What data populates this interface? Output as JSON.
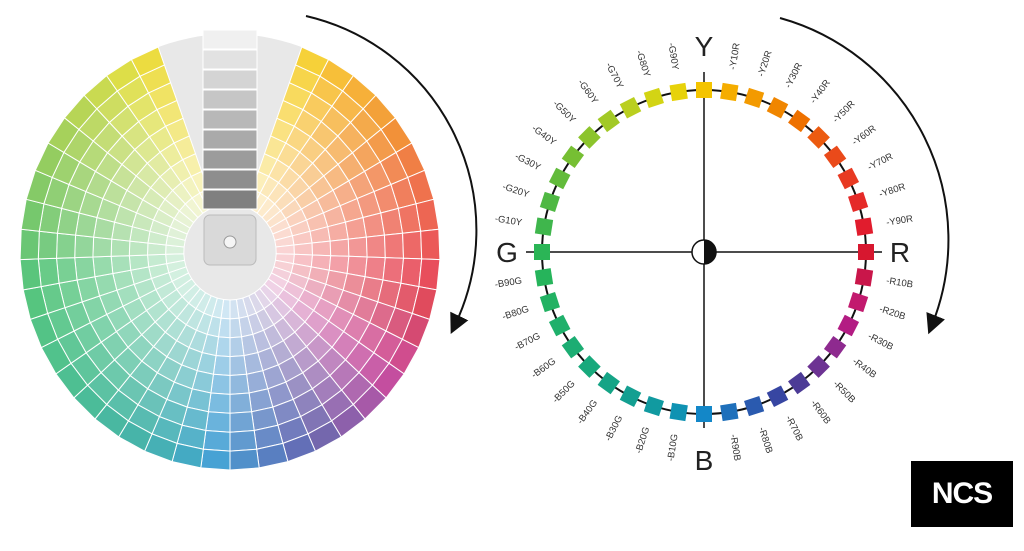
{
  "color_wheel": {
    "axis_labels": {
      "top": "Y",
      "right": "R",
      "bottom": "B",
      "left": "G"
    },
    "hues": [
      {
        "label": "Y",
        "color": "#f4c400",
        "major": true
      },
      {
        "label": "-Y10R",
        "color": "#f5ad00"
      },
      {
        "label": "-Y20R",
        "color": "#f39a00"
      },
      {
        "label": "-Y30R",
        "color": "#f08600"
      },
      {
        "label": "-Y40R",
        "color": "#ee7100"
      },
      {
        "label": "-Y50R",
        "color": "#ec5b10"
      },
      {
        "label": "-Y60R",
        "color": "#ea4a1a"
      },
      {
        "label": "-Y70R",
        "color": "#e83a22"
      },
      {
        "label": "-Y80R",
        "color": "#e52a28"
      },
      {
        "label": "-Y90R",
        "color": "#e11c2d"
      },
      {
        "label": "R",
        "color": "#d7172f",
        "major": true
      },
      {
        "label": "-R10B",
        "color": "#c9164a"
      },
      {
        "label": "-R20B",
        "color": "#c21a6e"
      },
      {
        "label": "-R30B",
        "color": "#b31c83"
      },
      {
        "label": "-R40B",
        "color": "#8e2a8f"
      },
      {
        "label": "-R50B",
        "color": "#6d3393"
      },
      {
        "label": "-R60B",
        "color": "#4c3b96"
      },
      {
        "label": "-R70B",
        "color": "#3746a2"
      },
      {
        "label": "-R80B",
        "color": "#2a5aaf"
      },
      {
        "label": "-R90B",
        "color": "#1f70bb"
      },
      {
        "label": "B",
        "color": "#1387c8",
        "major": true
      },
      {
        "label": "-B10G",
        "color": "#0f92b2"
      },
      {
        "label": "-B20G",
        "color": "#119aa0"
      },
      {
        "label": "-B30G",
        "color": "#139f91"
      },
      {
        "label": "-B40G",
        "color": "#15a486"
      },
      {
        "label": "-B50G",
        "color": "#18a97c"
      },
      {
        "label": "-B60G",
        "color": "#1cad73"
      },
      {
        "label": "-B70G",
        "color": "#1fb06b"
      },
      {
        "label": "-B80G",
        "color": "#22b263"
      },
      {
        "label": "-B90G",
        "color": "#26b45b"
      },
      {
        "label": "G",
        "color": "#2bb556",
        "major": true
      },
      {
        "label": "-G10Y",
        "color": "#3fb64c"
      },
      {
        "label": "-G20Y",
        "color": "#4fb843"
      },
      {
        "label": "-G30Y",
        "color": "#62bb3b"
      },
      {
        "label": "-G40Y",
        "color": "#76bf33"
      },
      {
        "label": "-G50Y",
        "color": "#8cc42c"
      },
      {
        "label": "-G60Y",
        "color": "#a2c926"
      },
      {
        "label": "-G70Y",
        "color": "#bacf1f"
      },
      {
        "label": "-G80Y",
        "color": "#d3d414"
      },
      {
        "label": "-G90Y",
        "color": "#e7d20a"
      }
    ]
  },
  "logo": {
    "text": "NCS",
    "background": "#000000",
    "color": "#ffffff"
  }
}
